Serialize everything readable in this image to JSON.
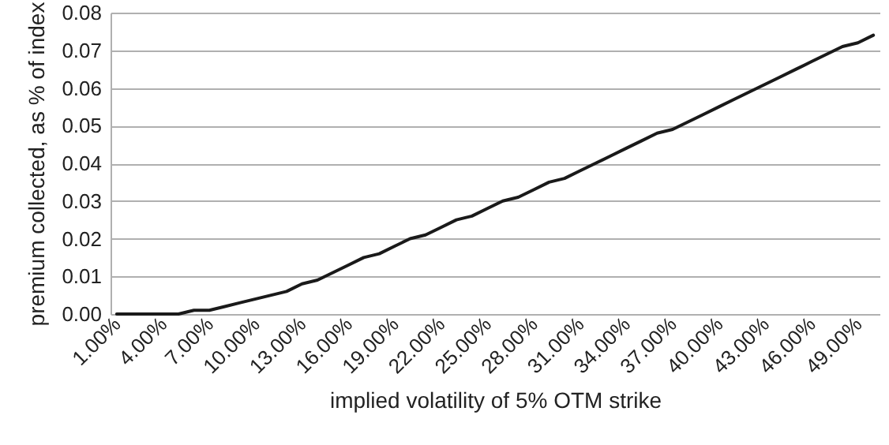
{
  "chart_data": {
    "type": "line",
    "xlabel": "implied volatility of 5% OTM strike",
    "ylabel": "premium collected, as % of index",
    "categories": [
      "1.00%",
      null,
      null,
      "4.00%",
      null,
      null,
      "7.00%",
      null,
      null,
      "10.00%",
      null,
      null,
      "13.00%",
      null,
      null,
      "16.00%",
      null,
      null,
      "19.00%",
      null,
      null,
      "22.00%",
      null,
      null,
      "25.00%",
      null,
      null,
      "28.00%",
      null,
      null,
      "31.00%",
      null,
      null,
      "34.00%",
      null,
      null,
      "37.00%",
      null,
      null,
      "40.00%",
      null,
      null,
      "43.00%",
      null,
      null,
      "46.00%",
      null,
      null,
      "49.00%",
      null
    ],
    "series": [
      {
        "color": "#1a1a1a",
        "values": [
          0,
          0,
          0,
          0,
          0,
          0.001,
          0.001,
          0.002,
          0.003,
          0.004,
          0.005,
          0.006,
          0.008,
          0.009,
          0.011,
          0.013,
          0.015,
          0.016,
          0.018,
          0.02,
          0.021,
          0.023,
          0.025,
          0.026,
          0.028,
          0.03,
          0.031,
          0.033,
          0.035,
          0.036,
          0.038,
          0.04,
          0.042,
          0.044,
          0.046,
          0.048,
          0.049,
          0.051,
          0.053,
          0.055,
          0.057,
          0.059,
          0.061,
          0.063,
          0.065,
          0.067,
          0.069,
          0.071,
          0.072,
          0.074
        ]
      }
    ],
    "ylim": [
      0,
      0.08
    ],
    "yticks": [
      {
        "value": 0,
        "label": "0.00"
      },
      {
        "value": 0.01,
        "label": "0.01"
      },
      {
        "value": 0.02,
        "label": "0.02"
      },
      {
        "value": 0.03,
        "label": "0.03"
      },
      {
        "value": 0.04,
        "label": "0.04"
      },
      {
        "value": 0.05,
        "label": "0.05"
      },
      {
        "value": 0.06,
        "label": "0.06"
      },
      {
        "value": 0.07,
        "label": "0.07"
      },
      {
        "value": 0.08,
        "label": "0.08"
      }
    ],
    "grid": "y",
    "marker": "none",
    "line_style": "solid"
  }
}
